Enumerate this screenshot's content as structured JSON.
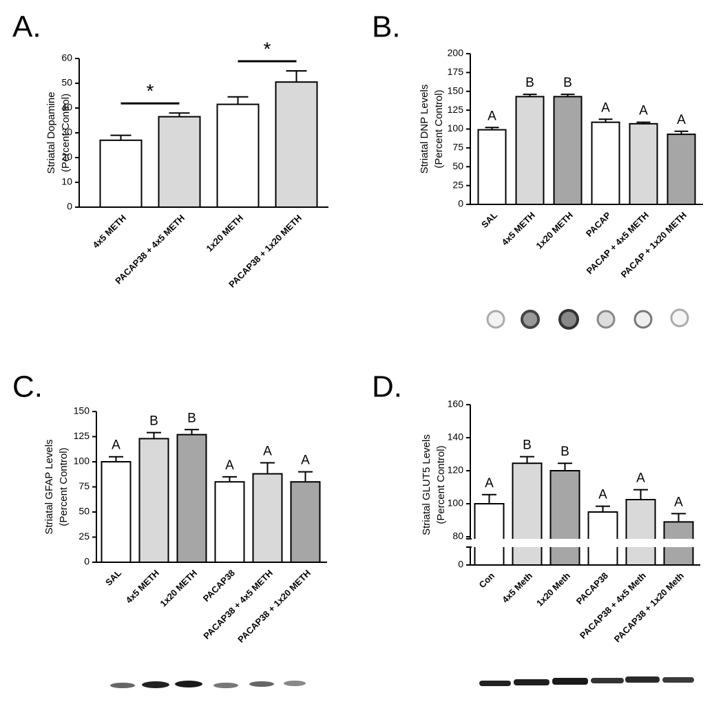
{
  "chart_data": [
    {
      "type": "bar",
      "title": "A.",
      "ylabel": [
        "Striatal Dopamine",
        "(Percent Control)"
      ],
      "categories": [
        "4x5 METH",
        "PACAP38 + 4x5 METH",
        "1x20 METH",
        "PACAP38 + 1x20 METH"
      ],
      "values": [
        27,
        36.5,
        41.5,
        50.5
      ],
      "errors": [
        2,
        1.5,
        3,
        4.5
      ],
      "colors": [
        "#ffffff",
        "#d9d9d9",
        "#ffffff",
        "#d9d9d9"
      ],
      "ylim": [
        0,
        60
      ],
      "yticks": [
        0,
        10,
        20,
        30,
        40,
        50,
        60
      ],
      "annotations": [
        {
          "text": "*",
          "between": [
            "4x5 METH",
            "PACAP38 + 4x5 METH"
          ]
        },
        {
          "text": "*",
          "between": [
            "1x20 METH",
            "PACAP38 + 1x20 METH"
          ]
        }
      ]
    },
    {
      "type": "bar",
      "title": "B.",
      "ylabel": [
        "Striatal DNP Levels",
        "(Percent Control)"
      ],
      "categories": [
        "SAL",
        "4x5 METH",
        "1x20 METH",
        "PACAP",
        "PACAP + 4x5 METH",
        "PACAP + 1x20 METH"
      ],
      "values": [
        99,
        143,
        143,
        109,
        107,
        93
      ],
      "errors": [
        3,
        3,
        3,
        4,
        2,
        4
      ],
      "letters": [
        "A",
        "B",
        "B",
        "A",
        "A",
        "A"
      ],
      "colors": [
        "#ffffff",
        "#d9d9d9",
        "#a6a6a6",
        "#ffffff",
        "#d9d9d9",
        "#a6a6a6"
      ],
      "ylim": [
        0,
        200
      ],
      "yticks": [
        0,
        25,
        50,
        75,
        100,
        125,
        150,
        175,
        200
      ]
    },
    {
      "type": "bar",
      "title": "C.",
      "ylabel": [
        "Striatal GFAP Levels",
        "(Percent Control)"
      ],
      "categories": [
        "SAL",
        "4x5 METH",
        "1x20 METH",
        "PACAP38",
        "PACAP38 + 4x5 METH",
        "PACAP38 + 1x20 METH"
      ],
      "values": [
        100,
        123,
        127,
        80,
        88,
        80
      ],
      "errors": [
        5,
        6,
        5,
        5,
        11,
        10
      ],
      "letters": [
        "A",
        "B",
        "B",
        "A",
        "A",
        "A"
      ],
      "colors": [
        "#ffffff",
        "#d9d9d9",
        "#a6a6a6",
        "#ffffff",
        "#d9d9d9",
        "#a6a6a6"
      ],
      "ylim": [
        0,
        150
      ],
      "yticks": [
        0,
        25,
        50,
        75,
        100,
        125,
        150
      ]
    },
    {
      "type": "bar",
      "title": "D.",
      "ylabel": [
        "Striatal GLUT5 Levels",
        "(Percent Control)"
      ],
      "categories": [
        "Con",
        "4x5 Meth",
        "1x20 Meth",
        "PACAP38",
        "PACAP38 + 4x5 Meth",
        "PACAP38 + 1x20 Meth"
      ],
      "values": [
        100,
        124.5,
        120,
        95,
        102.5,
        89
      ],
      "errors": [
        5.5,
        4,
        4.5,
        3.5,
        6,
        5
      ],
      "letters": [
        "A",
        "B",
        "B",
        "A",
        "A",
        "A"
      ],
      "colors": [
        "#ffffff",
        "#d9d9d9",
        "#a6a6a6",
        "#ffffff",
        "#d9d9d9",
        "#a6a6a6"
      ],
      "ylim": [
        0,
        160
      ],
      "yticks": [
        0,
        80,
        100,
        120,
        140,
        160
      ],
      "ybreak": [
        0,
        80
      ]
    }
  ]
}
